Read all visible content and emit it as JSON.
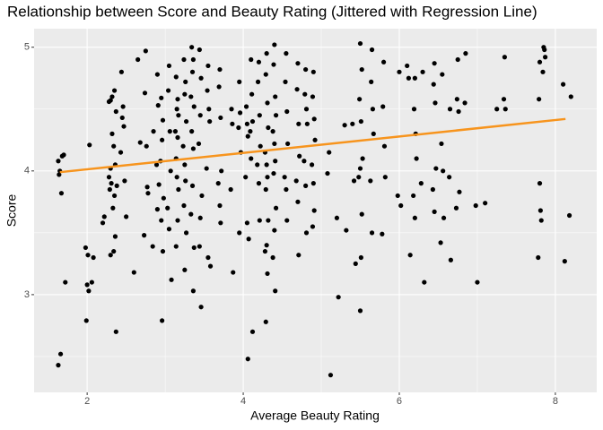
{
  "chart_data": {
    "type": "scatter",
    "title": "Relationship between Score and Beauty Rating (Jittered with Regression Line)",
    "x_label": "Average Beauty Rating",
    "y_label": "Score",
    "color": "#000000",
    "xlim": [
      1.32,
      8.53
    ],
    "ylim": [
      2.21,
      5.15
    ],
    "xticks": [
      2,
      4,
      6,
      8
    ],
    "yticks": [
      3,
      4,
      5
    ],
    "xminor": [
      3,
      5,
      7
    ],
    "yminor": [
      2.5,
      3.5,
      4.5
    ],
    "grid": true,
    "x": [
      1.63,
      1.65,
      1.64,
      1.66,
      1.63,
      1.67,
      1.68,
      1.7,
      1.72,
      1.98,
      2.0,
      2.02,
      1.99,
      2.03,
      2.01,
      2.06,
      2.08,
      2.2,
      2.22,
      2.28,
      2.3,
      2.32,
      2.29,
      2.31,
      2.33,
      2.3,
      2.28,
      2.32,
      2.3,
      2.35,
      2.37,
      2.34,
      2.36,
      2.38,
      2.35,
      2.36,
      2.34,
      2.37,
      2.44,
      2.46,
      2.45,
      2.47,
      2.43,
      2.48,
      2.5,
      2.6,
      2.65,
      2.68,
      2.75,
      2.76,
      2.74,
      2.77,
      2.78,
      2.73,
      2.85,
      2.84,
      2.9,
      2.91,
      2.89,
      2.92,
      2.9,
      2.95,
      2.97,
      2.96,
      2.94,
      2.98,
      2.95,
      2.97,
      2.96,
      3.05,
      3.04,
      3.06,
      3.07,
      3.03,
      3.05,
      3.08,
      3.14,
      3.16,
      3.15,
      3.17,
      3.13,
      3.16,
      3.14,
      3.15,
      3.17,
      3.16,
      3.14,
      3.24,
      3.26,
      3.25,
      3.27,
      3.23,
      3.25,
      3.26,
      3.24,
      3.27,
      3.25,
      3.34,
      3.36,
      3.35,
      3.33,
      3.37,
      3.34,
      3.36,
      3.35,
      3.33,
      3.37,
      3.36,
      3.44,
      3.46,
      3.45,
      3.43,
      3.47,
      3.45,
      3.44,
      3.46,
      3.55,
      3.54,
      3.56,
      3.57,
      3.53,
      3.55,
      3.58,
      3.7,
      3.69,
      3.71,
      3.72,
      3.68,
      3.7,
      3.71,
      3.85,
      3.86,
      3.84,
      3.87,
      3.95,
      3.96,
      3.94,
      3.97,
      3.95,
      4.04,
      4.05,
      4.06,
      4.03,
      4.05,
      4.07,
      4.06,
      4.1,
      4.11,
      4.12,
      4.09,
      4.1,
      4.12,
      4.2,
      4.19,
      4.21,
      4.22,
      4.18,
      4.2,
      4.21,
      4.3,
      4.29,
      4.31,
      4.32,
      4.28,
      4.3,
      4.31,
      4.29,
      4.32,
      4.3,
      4.28,
      4.31,
      4.29,
      4.4,
      4.39,
      4.41,
      4.42,
      4.38,
      4.4,
      4.41,
      4.39,
      4.42,
      4.4,
      4.38,
      4.41,
      4.55,
      4.54,
      4.56,
      4.57,
      4.53,
      4.55,
      4.56,
      4.7,
      4.69,
      4.71,
      4.72,
      4.68,
      4.7,
      4.71,
      4.8,
      4.79,
      4.81,
      4.82,
      4.78,
      4.8,
      4.81,
      4.9,
      4.89,
      4.91,
      4.92,
      4.88,
      4.9,
      4.91,
      4.89,
      5.1,
      5.08,
      5.12,
      5.2,
      5.22,
      5.3,
      5.32,
      5.4,
      5.42,
      5.44,
      5.5,
      5.52,
      5.49,
      5.51,
      5.53,
      5.5,
      5.48,
      5.52,
      5.51,
      5.5,
      5.65,
      5.64,
      5.66,
      5.67,
      5.63,
      5.65,
      5.8,
      5.79,
      5.81,
      5.82,
      5.78,
      6.0,
      5.98,
      6.02,
      6.1,
      6.12,
      6.14,
      6.2,
      6.19,
      6.21,
      6.22,
      6.18,
      6.2,
      6.3,
      6.32,
      6.28,
      6.45,
      6.44,
      6.46,
      6.47,
      6.43,
      6.45,
      6.55,
      6.54,
      6.56,
      6.57,
      6.53,
      6.65,
      6.64,
      6.66,
      6.75,
      6.74,
      6.76,
      6.77,
      6.73,
      6.85,
      6.84,
      7.0,
      6.98,
      7.1,
      7.25,
      7.35,
      7.34,
      7.36,
      7.8,
      7.79,
      7.81,
      7.82,
      7.78,
      7.8,
      7.85,
      7.86,
      7.84,
      7.87,
      8.1,
      8.12,
      8.2,
      8.18
    ],
    "values": [
      4.08,
      4.0,
      3.97,
      2.52,
      2.43,
      3.82,
      4.12,
      4.13,
      3.1,
      3.38,
      3.08,
      3.03,
      2.79,
      4.21,
      3.32,
      3.1,
      3.3,
      3.58,
      3.63,
      4.56,
      4.57,
      4.6,
      3.85,
      3.9,
      3.7,
      3.32,
      3.95,
      4.3,
      4.02,
      4.65,
      4.48,
      4.2,
      4.05,
      3.88,
      3.8,
      3.47,
      3.35,
      2.7,
      4.8,
      4.52,
      4.43,
      4.36,
      4.15,
      3.92,
      3.63,
      3.18,
      4.9,
      4.23,
      4.97,
      4.2,
      4.63,
      3.87,
      3.82,
      3.48,
      4.32,
      3.39,
      4.78,
      4.53,
      4.05,
      3.89,
      3.69,
      4.59,
      4.41,
      4.25,
      4.08,
      3.78,
      3.6,
      3.35,
      2.79,
      4.85,
      4.65,
      4.32,
      4.0,
      3.7,
      3.53,
      3.12,
      4.76,
      4.58,
      4.5,
      4.45,
      4.32,
      4.27,
      4.1,
      3.95,
      3.85,
      3.6,
      3.39,
      4.9,
      4.72,
      4.62,
      4.4,
      4.2,
      4.05,
      3.92,
      3.72,
      3.5,
      3.2,
      5.0,
      4.9,
      4.8,
      4.6,
      4.52,
      4.32,
      4.18,
      3.88,
      3.65,
      3.38,
      3.03,
      4.98,
      4.75,
      4.45,
      4.22,
      3.8,
      3.62,
      3.39,
      2.9,
      4.85,
      4.65,
      4.5,
      4.4,
      4.02,
      3.3,
      3.23,
      4.82,
      4.68,
      4.43,
      4.0,
      3.9,
      3.72,
      3.58,
      4.5,
      4.38,
      3.85,
      3.18,
      4.72,
      4.47,
      4.35,
      4.15,
      3.5,
      4.52,
      4.38,
      4.28,
      3.95,
      3.58,
      3.45,
      2.48,
      4.9,
      4.62,
      4.4,
      4.32,
      4.1,
      2.7,
      4.88,
      4.72,
      4.45,
      4.2,
      4.05,
      3.9,
      3.6,
      4.95,
      4.78,
      4.55,
      4.35,
      4.15,
      4.05,
      3.95,
      3.85,
      3.6,
      3.4,
      3.35,
      3.17,
      2.78,
      5.02,
      4.86,
      4.6,
      4.45,
      4.32,
      4.22,
      4.08,
      3.98,
      3.7,
      3.52,
      3.3,
      3.03,
      4.95,
      4.72,
      4.48,
      4.22,
      3.95,
      3.85,
      3.6,
      4.87,
      4.66,
      4.38,
      4.12,
      3.92,
      3.75,
      3.32,
      4.82,
      4.62,
      4.5,
      4.38,
      4.08,
      3.88,
      3.5,
      4.8,
      4.6,
      4.42,
      4.25,
      4.05,
      3.9,
      3.68,
      3.55,
      4.15,
      3.98,
      2.35,
      3.62,
      2.98,
      4.37,
      3.52,
      4.38,
      3.92,
      3.25,
      5.03,
      4.82,
      4.58,
      4.4,
      4.1,
      4.02,
      3.95,
      3.65,
      3.3,
      2.87,
      4.98,
      4.72,
      4.5,
      4.3,
      3.92,
      3.5,
      4.88,
      4.52,
      4.2,
      3.95,
      3.49,
      4.8,
      3.8,
      3.72,
      4.85,
      4.75,
      3.32,
      4.75,
      4.5,
      4.3,
      4.1,
      3.8,
      3.62,
      4.8,
      3.1,
      3.9,
      4.87,
      4.7,
      4.55,
      4.02,
      3.85,
      3.67,
      4.78,
      4.22,
      4.0,
      3.62,
      3.42,
      4.5,
      3.95,
      3.28,
      4.9,
      4.58,
      4.48,
      3.83,
      3.7,
      4.95,
      4.55,
      3.1,
      3.72,
      3.74,
      4.5,
      4.92,
      4.58,
      4.5,
      4.88,
      4.58,
      3.68,
      3.6,
      3.3,
      3.9,
      5.0,
      4.98,
      4.8,
      4.92,
      4.7,
      3.27,
      4.6,
      3.64
    ],
    "regression": {
      "x": [
        1.65,
        8.13
      ],
      "values": [
        3.99,
        4.42
      ],
      "color": "#f7941d"
    }
  }
}
